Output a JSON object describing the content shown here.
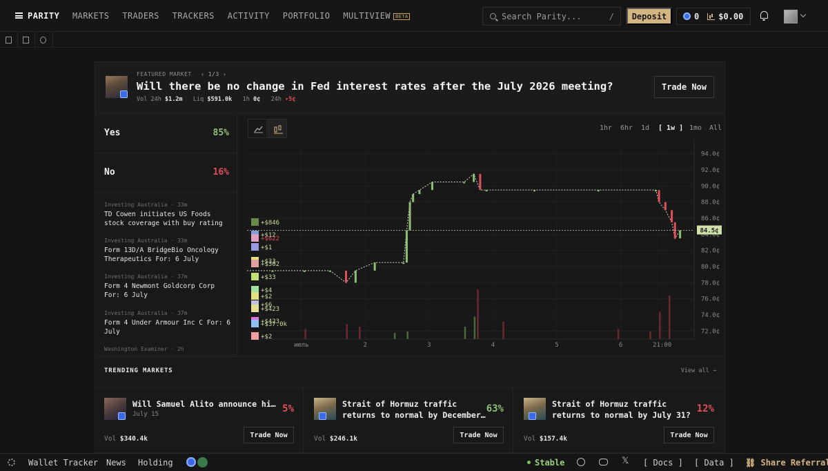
{
  "nav": {
    "brand": "PARITY",
    "links": [
      "MARKETS",
      "TRADERS",
      "TRACKERS",
      "ACTIVITY",
      "PORTFOLIO",
      "MULTIVIEW"
    ],
    "beta_label": "BETA",
    "search_placeholder": "Search Parity...",
    "search_shortcut": "/",
    "deposit_label": "Deposit",
    "points": "0",
    "balance": "$0.00"
  },
  "featured": {
    "label": "FEATURED MARKET",
    "pager": "1/3",
    "title": "Will there be no change in Fed interest rates after the July 2026 meeting?",
    "vol_label": "Vol 24h",
    "vol": "$1.2m",
    "liq_label": "Liq",
    "liq": "$591.0k",
    "h1_label": "1h",
    "h1": "0¢",
    "h24_label": "24h",
    "h24": "▾5¢",
    "trade_label": "Trade Now"
  },
  "outcomes": [
    {
      "name": "Yes",
      "pct": "85%",
      "color": "#8fbf74"
    },
    {
      "name": "No",
      "pct": "16%",
      "color": "#e0505a"
    }
  ],
  "news": [
    {
      "source": "Investing Australia · 33m",
      "headline": "TD Cowen initiates US Foods stock coverage with buy rating"
    },
    {
      "source": "Investing Australia · 33m",
      "headline": "Form 13D/A BridgeBio Oncology Therapeutics For: 6 July"
    },
    {
      "source": "Investing Australia · 37m",
      "headline": "Form 4 Newmont Goldcorp Corp For: 6 July"
    },
    {
      "source": "Investing Australia · 37m",
      "headline": "Form 4 Under Armour Inc C For: 6 July"
    },
    {
      "source": "Washington Examiner · 2h",
      "headline": ""
    }
  ],
  "timeframes": [
    "1hr",
    "6hr",
    "1d",
    "1w",
    "1mo",
    "All"
  ],
  "active_timeframe": "1w",
  "chart_data": {
    "type": "line",
    "x_tick_labels": [
      "июль",
      "2",
      "3",
      "4",
      "5",
      "6",
      "21:00"
    ],
    "y_tick_labels": [
      "94.0¢",
      "92.0¢",
      "90.0¢",
      "88.0¢",
      "86.0¢",
      "84.0¢",
      "82.0¢",
      "80.0¢",
      "78.0¢",
      "76.0¢",
      "74.0¢",
      "72.0¢"
    ],
    "ylim": [
      71.0,
      95.0
    ],
    "current_price": "84.5¢",
    "series": [
      {
        "x": [
          0.0,
          0.4,
          0.9,
          1.3,
          1.55,
          1.7,
          2.0,
          2.45,
          2.5,
          2.55,
          2.6,
          2.7,
          2.9,
          3.4,
          3.55,
          3.65,
          3.75,
          4.5,
          5.5,
          6.4,
          6.45,
          6.55,
          6.65,
          6.7,
          6.78
        ],
        "y": [
          79.5,
          79.5,
          79.5,
          79.5,
          78.0,
          79.5,
          80.5,
          80.5,
          84.5,
          88.0,
          89.0,
          89.5,
          90.5,
          90.5,
          91.5,
          89.5,
          89.5,
          89.5,
          89.5,
          89.5,
          88.0,
          87.0,
          85.5,
          83.5,
          84.5
        ]
      }
    ],
    "trade_annotations": [
      "+$846",
      "+$12",
      "+$622",
      "+$1",
      "+$33",
      "+$302",
      "+$33",
      "+$4",
      "+$2",
      "+$6",
      "+$423",
      "+$423",
      "+$37.0k",
      "+$2"
    ]
  },
  "trending": {
    "title": "TRENDING MARKETS",
    "view_all": "View all →",
    "cards": [
      {
        "title": "Will Samuel Alito announce his…",
        "sub": "July 15",
        "pct": "5%",
        "pct_color": "#e0505a",
        "vol_label": "Vol",
        "vol": "$340.4k",
        "trade": "Trade Now"
      },
      {
        "title": "Strait of Hormuz traffic returns to normal by December…",
        "sub": "",
        "pct": "63%",
        "pct_color": "#8fbf74",
        "vol_label": "Vol",
        "vol": "$246.1k",
        "trade": "Trade Now"
      },
      {
        "title": "Strait of Hormuz traffic returns to normal by July 31?",
        "sub": "",
        "pct": "12%",
        "pct_color": "#e0505a",
        "vol_label": "Vol",
        "vol": "$157.4k",
        "trade": "Trade Now"
      }
    ]
  },
  "footer": {
    "wallet_tracker": "Wallet Tracker",
    "news": "News",
    "holding": "Holding",
    "status": "Stable",
    "docs": "[ Docs ]",
    "data": "[ Data ]",
    "share": "Share Referral"
  }
}
